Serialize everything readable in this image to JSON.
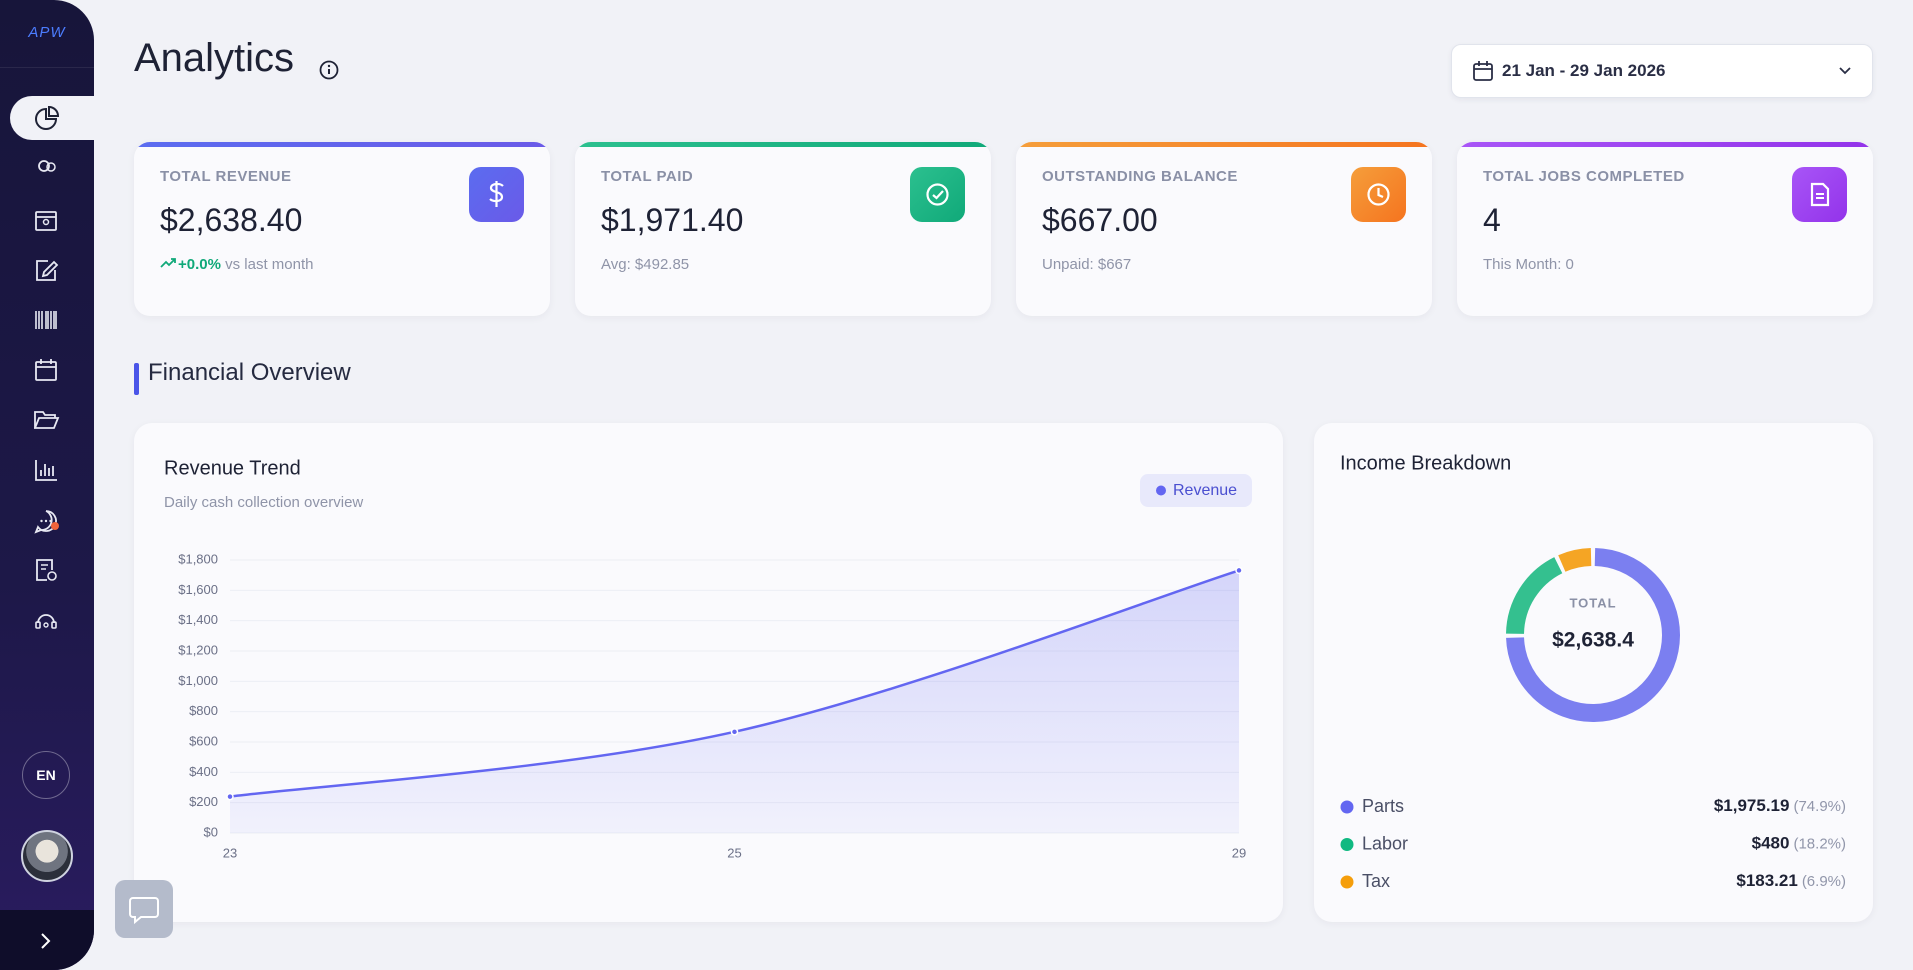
{
  "sidebar": {
    "logo": "APW",
    "language": "EN"
  },
  "header": {
    "title": "Analytics",
    "date_range": "21 Jan - 29 Jan 2026"
  },
  "cards": [
    {
      "label": "TOTAL REVENUE",
      "value": "$2,638.40",
      "change": "+0.0%",
      "note": "vs last month"
    },
    {
      "label": "TOTAL PAID",
      "value": "$1,971.40",
      "note": "Avg: $492.85"
    },
    {
      "label": "OUTSTANDING BALANCE",
      "value": "$667.00",
      "note": "Unpaid: $667"
    },
    {
      "label": "TOTAL JOBS COMPLETED",
      "value": "4",
      "note": "This Month: 0"
    }
  ],
  "section_title": "Financial Overview",
  "chart_data": [
    {
      "type": "line",
      "title": "Revenue Trend",
      "subtitle": "Daily cash collection overview",
      "categories": [
        "23",
        "25",
        "29"
      ],
      "series": [
        {
          "name": "Revenue",
          "color": "#6366f1",
          "values": [
            240,
            667,
            1731.4
          ]
        }
      ],
      "ylim": [
        0,
        1800
      ],
      "yticks": [
        {
          "value": 0,
          "label": "$0"
        },
        {
          "value": 200,
          "label": "$200"
        },
        {
          "value": 400,
          "label": "$400"
        },
        {
          "value": 600,
          "label": "$600"
        },
        {
          "value": 800,
          "label": "$800"
        },
        {
          "value": 1000,
          "label": "$1,000"
        },
        {
          "value": 1200,
          "label": "$1,200"
        },
        {
          "value": 1400,
          "label": "$1,400"
        },
        {
          "value": 1600,
          "label": "$1,600"
        },
        {
          "value": 1800,
          "label": "$1,800"
        }
      ],
      "grid": true
    },
    {
      "type": "donut",
      "title": "Income Breakdown",
      "center_label": "TOTAL",
      "center_value": "$2,638.4",
      "categories": [
        "Parts",
        "Labor",
        "Tax"
      ],
      "values": [
        1975.19,
        480,
        183.21
      ],
      "value_labels": [
        "$1,975.19",
        "$480",
        "$183.21"
      ],
      "percentages": [
        74.9,
        18.2,
        6.9
      ],
      "percentage_labels": [
        "(74.9%)",
        "(18.2%)",
        "(6.9%)"
      ],
      "colors": [
        "#7b7ff0",
        "#34c08f",
        "#f5a524"
      ]
    }
  ]
}
